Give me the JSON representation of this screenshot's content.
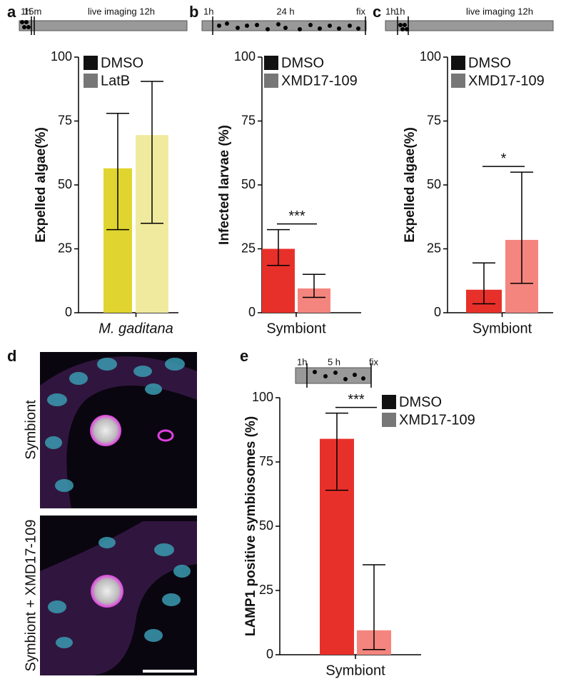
{
  "chart_data": [
    {
      "type": "bar",
      "panel_label": "a",
      "timeline": [
        "1h",
        "15m",
        "live imaging 12h"
      ],
      "ylabel": "Expelled algae(%)",
      "categories": [
        "M. gaditana"
      ],
      "series": [
        {
          "name": "DMSO",
          "color": "#e0d530",
          "legend_color": "#111111",
          "values": [
            56.5
          ],
          "error_low": [
            32.5
          ],
          "error_high": [
            78
          ]
        },
        {
          "name": "LatB",
          "color": "#f0ea9e",
          "legend_color": "#777777",
          "values": [
            69.5
          ],
          "error_low": [
            35
          ],
          "error_high": [
            90.5
          ]
        }
      ],
      "ylim": [
        0,
        100
      ],
      "yticks": [
        0,
        25,
        50,
        75,
        100
      ]
    },
    {
      "type": "bar",
      "panel_label": "b",
      "timeline": [
        "1h",
        "24 h",
        "fix"
      ],
      "ylabel": "Infected larvae (%)",
      "categories": [
        "Symbiont"
      ],
      "series": [
        {
          "name": "DMSO",
          "color": "#e8302a",
          "legend_color": "#111111",
          "values": [
            25
          ],
          "error_low": [
            18.5
          ],
          "error_high": [
            32.5
          ]
        },
        {
          "name": "XMD17-109",
          "color": "#f4857e",
          "legend_color": "#777777",
          "values": [
            9.5
          ],
          "error_low": [
            6
          ],
          "error_high": [
            15
          ]
        }
      ],
      "significance": "***",
      "ylim": [
        0,
        100
      ],
      "yticks": [
        0,
        25,
        50,
        75,
        100
      ]
    },
    {
      "type": "bar",
      "panel_label": "c",
      "timeline": [
        "1h",
        "1h",
        "live imaging 12h"
      ],
      "ylabel": "Expelled algae(%)",
      "categories": [
        "Symbiont"
      ],
      "series": [
        {
          "name": "DMSO",
          "color": "#e8302a",
          "legend_color": "#111111",
          "values": [
            9
          ],
          "error_low": [
            3.5
          ],
          "error_high": [
            19.5
          ]
        },
        {
          "name": "XMD17-109",
          "color": "#f4857e",
          "legend_color": "#777777",
          "values": [
            28.5
          ],
          "error_low": [
            11.5
          ],
          "error_high": [
            55
          ]
        }
      ],
      "significance": "*",
      "ylim": [
        0,
        100
      ],
      "yticks": [
        0,
        25,
        50,
        75,
        100
      ]
    },
    {
      "type": "bar",
      "panel_label": "e",
      "timeline": [
        "1h",
        "5 h",
        "fix"
      ],
      "ylabel": "LAMP1 positive symbiosomes (%)",
      "categories": [
        "Symbiont"
      ],
      "series": [
        {
          "name": "DMSO",
          "color": "#e8302a",
          "legend_color": "#111111",
          "values": [
            84
          ],
          "error_low": [
            64
          ],
          "error_high": [
            94
          ]
        },
        {
          "name": "XMD17-109",
          "color": "#f4857e",
          "legend_color": "#777777",
          "values": [
            9.5
          ],
          "error_low": [
            2
          ],
          "error_high": [
            35
          ]
        }
      ],
      "significance": "***",
      "ylim": [
        0,
        100
      ],
      "yticks": [
        0,
        25,
        50,
        75,
        100
      ]
    }
  ],
  "images": {
    "panel_label": "d",
    "labels": [
      "Symbiont",
      "Symbiont + XMD17-109"
    ]
  }
}
